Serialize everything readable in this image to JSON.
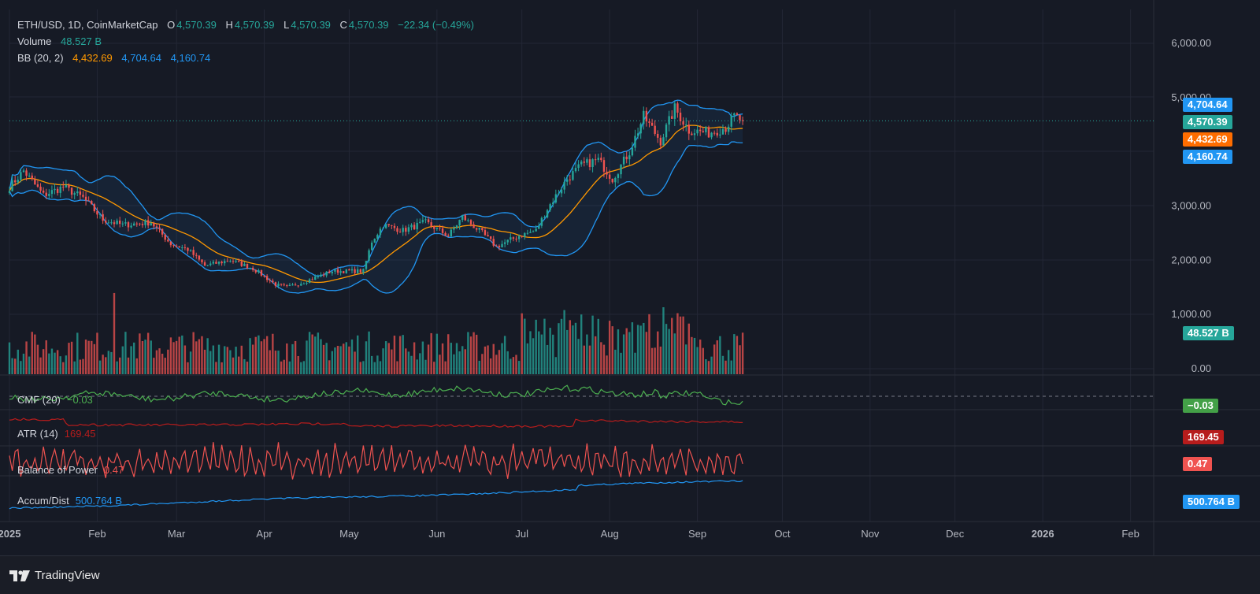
{
  "header": {
    "symbol": "ETH/USD, 1D, CoinMarketCap",
    "o_label": "O",
    "o_value": "4,570.39",
    "h_label": "H",
    "h_value": "4,570.39",
    "l_label": "L",
    "l_value": "4,570.39",
    "c_label": "C",
    "c_value": "4,570.39",
    "change": "−22.34 (−0.49%)",
    "volume_label": "Volume",
    "volume_value": "48.527 B",
    "bb_label": "BB (20, 2)",
    "bb_mid": "4,432.69",
    "bb_upper": "4,704.64",
    "bb_lower": "4,160.74"
  },
  "indicators": {
    "cmf_label": "CMF (20)",
    "cmf_value": "−0.03",
    "atr_label": "ATR (14)",
    "atr_value": "169.45",
    "bop_label": "Balance of Power",
    "bop_value": "0.47",
    "ad_label": "Accum/Dist",
    "ad_value": "500.764 B"
  },
  "price_pills": {
    "upper": "4,704.64",
    "close": "4,570.39",
    "mid": "4,432.69",
    "lower": "4,160.74",
    "volume": "48.527 B",
    "cmf": "−0.03",
    "atr": "169.45",
    "bop": "0.47",
    "ad": "500.764 B"
  },
  "branding": "TradingView",
  "colors": {
    "up": "#26a69a",
    "down": "#ef5350",
    "bb_mid": "#ff9800",
    "bb_band": "#2196f3",
    "cmf": "#4caf50",
    "atr": "#b71c1c",
    "bop": "#ef5350",
    "ad": "#2196f3"
  },
  "chart_data": {
    "type": "candlestick",
    "title": "ETH/USD, 1D, CoinMarketCap",
    "ylim": [
      0,
      6400
    ],
    "y_ticks": [
      "6,000.00",
      "5,000.00",
      "3,000.00",
      "2,000.00",
      "1,000.00",
      "0.00"
    ],
    "y_tick_values": [
      6000,
      5000,
      3000,
      2000,
      1000,
      0
    ],
    "x_ticks": [
      "2025",
      "Feb",
      "Mar",
      "Apr",
      "May",
      "Jun",
      "Jul",
      "Aug",
      "Sep",
      "Oct",
      "Nov",
      "Dec",
      "2026",
      "Feb"
    ],
    "x_tick_dates": [
      "2025-01-01",
      "2025-02-01",
      "2025-03-01",
      "2025-04-01",
      "2025-05-01",
      "2025-06-01",
      "2025-07-01",
      "2025-08-01",
      "2025-09-01",
      "2025-10-01",
      "2025-11-01",
      "2025-12-01",
      "2026-01-01",
      "2026-02-01"
    ],
    "x_start": "2025-01-01",
    "last_close": 4570.39,
    "close_anchors": [
      {
        "date": "2025-01-01",
        "close": 3350
      },
      {
        "date": "2025-01-06",
        "close": 3650
      },
      {
        "date": "2025-01-13",
        "close": 3200
      },
      {
        "date": "2025-01-20",
        "close": 3350
      },
      {
        "date": "2025-01-27",
        "close": 3150
      },
      {
        "date": "2025-02-03",
        "close": 2750
      },
      {
        "date": "2025-02-10",
        "close": 2650
      },
      {
        "date": "2025-02-20",
        "close": 2700
      },
      {
        "date": "2025-02-27",
        "close": 2300
      },
      {
        "date": "2025-03-05",
        "close": 2200
      },
      {
        "date": "2025-03-11",
        "close": 1900
      },
      {
        "date": "2025-03-20",
        "close": 2000
      },
      {
        "date": "2025-03-28",
        "close": 1850
      },
      {
        "date": "2025-04-05",
        "close": 1550
      },
      {
        "date": "2025-04-09",
        "close": 1500
      },
      {
        "date": "2025-04-15",
        "close": 1600
      },
      {
        "date": "2025-04-25",
        "close": 1800
      },
      {
        "date": "2025-05-06",
        "close": 1800
      },
      {
        "date": "2025-05-09",
        "close": 2350
      },
      {
        "date": "2025-05-13",
        "close": 2650
      },
      {
        "date": "2025-05-20",
        "close": 2550
      },
      {
        "date": "2025-05-28",
        "close": 2700
      },
      {
        "date": "2025-06-05",
        "close": 2450
      },
      {
        "date": "2025-06-10",
        "close": 2800
      },
      {
        "date": "2025-06-17",
        "close": 2500
      },
      {
        "date": "2025-06-22",
        "close": 2250
      },
      {
        "date": "2025-06-30",
        "close": 2450
      },
      {
        "date": "2025-07-06",
        "close": 2550
      },
      {
        "date": "2025-07-10",
        "close": 2950
      },
      {
        "date": "2025-07-17",
        "close": 3500
      },
      {
        "date": "2025-07-22",
        "close": 3750
      },
      {
        "date": "2025-07-28",
        "close": 3850
      },
      {
        "date": "2025-08-02",
        "close": 3500
      },
      {
        "date": "2025-08-08",
        "close": 4000
      },
      {
        "date": "2025-08-13",
        "close": 4650
      },
      {
        "date": "2025-08-19",
        "close": 4200
      },
      {
        "date": "2025-08-24",
        "close": 4800
      },
      {
        "date": "2025-08-29",
        "close": 4400
      },
      {
        "date": "2025-09-05",
        "close": 4350
      },
      {
        "date": "2025-09-11",
        "close": 4450
      },
      {
        "date": "2025-09-14",
        "close": 4650
      },
      {
        "date": "2025-09-17",
        "close": 4570.39
      }
    ],
    "bollinger": {
      "period": 20,
      "stddev": 2,
      "last_upper": 4704.64,
      "last_mid": 4432.69,
      "last_lower": 4160.74
    },
    "volume_last": "48.527 B"
  }
}
